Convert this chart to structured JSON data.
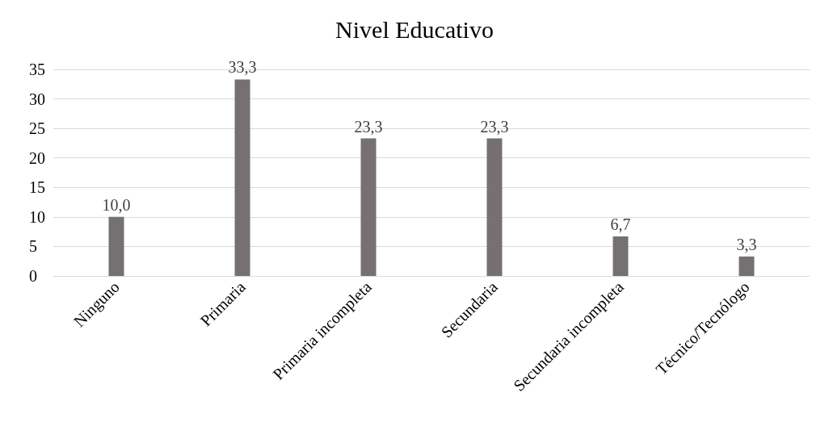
{
  "chart_data": {
    "type": "bar",
    "title": "Nivel Educativo",
    "categories": [
      "Ninguno",
      "Primaria",
      "Primaria incompleta",
      "Secundaria",
      "Secundaria incompleta",
      "Técnico/Tecnólogo"
    ],
    "values": [
      10.0,
      33.3,
      23.3,
      23.3,
      6.7,
      3.3
    ],
    "value_labels": [
      "10,0",
      "33,3",
      "23,3",
      "23,3",
      "6,7",
      "3,3"
    ],
    "color": "#767171",
    "ylim": [
      0,
      35
    ],
    "yticks": [
      0,
      5,
      10,
      15,
      20,
      25,
      30,
      35
    ],
    "grid": "y"
  }
}
